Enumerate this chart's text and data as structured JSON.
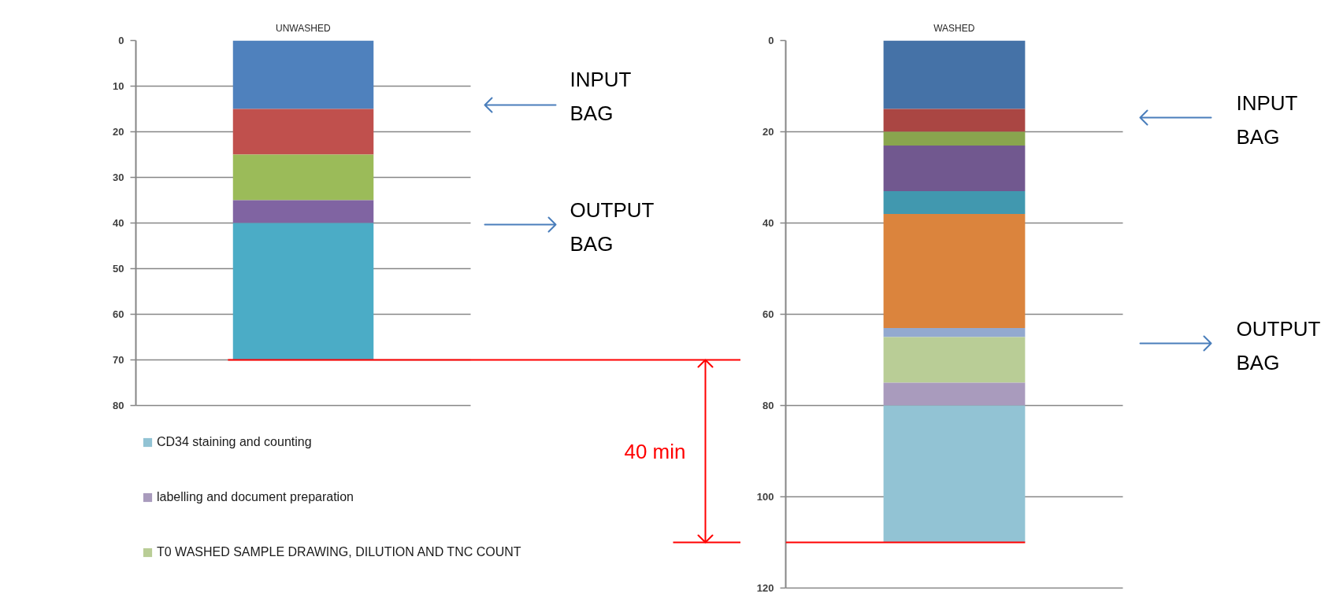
{
  "chart_data": [
    {
      "type": "bar",
      "title": "UNWASHED",
      "stacked": true,
      "categories": [
        null
      ],
      "series": [
        {
          "color": "#4f81bd",
          "values": [
            15
          ]
        },
        {
          "color": "#c0504d",
          "values": [
            10
          ]
        },
        {
          "color": "#9bbb59",
          "values": [
            10
          ]
        },
        {
          "color": "#8064a2",
          "values": [
            5
          ]
        },
        {
          "color": "#4bacc6",
          "values": [
            30
          ]
        }
      ],
      "ylim": [
        80,
        0
      ],
      "yticks": [
        0,
        10,
        20,
        30,
        40,
        50,
        60,
        70,
        80
      ],
      "grid": "y",
      "ref_lines": [
        {
          "axis": "y",
          "value": 70,
          "color": "#ff0000"
        }
      ],
      "annotations": [
        "INPUT BAG",
        "OUTPUT BAG",
        "40 min"
      ]
    },
    {
      "type": "bar",
      "title": "WASHED",
      "stacked": true,
      "categories": [
        null
      ],
      "series": [
        {
          "color": "#4572a7",
          "values": [
            15
          ]
        },
        {
          "color": "#aa4643",
          "values": [
            5
          ]
        },
        {
          "color": "#89a54e",
          "values": [
            3
          ]
        },
        {
          "color": "#71588f",
          "values": [
            10
          ]
        },
        {
          "color": "#4198af",
          "values": [
            5
          ]
        },
        {
          "color": "#db843d",
          "values": [
            25
          ]
        },
        {
          "color": "#93a9cf",
          "values": [
            2
          ]
        },
        {
          "name": "T0 WASHED SAMPLE DRAWING, DILUTION AND TNC COUNT",
          "color": "#b9cd96",
          "values": [
            10
          ]
        },
        {
          "name": "labelling and document preparation",
          "color": "#a99bbd",
          "values": [
            5
          ]
        },
        {
          "name": "CD34 staining and counting",
          "color": "#92c3d4",
          "values": [
            30
          ]
        }
      ],
      "ylim": [
        120,
        0
      ],
      "yticks": [
        0,
        20,
        40,
        60,
        80,
        100,
        120
      ],
      "grid": "y",
      "legend": "bottom left",
      "ref_lines": [
        {
          "axis": "y",
          "value": 110,
          "color": "#ff0000"
        }
      ],
      "annotations": [
        "INPUT BAG",
        "OUTPUT BAG"
      ]
    }
  ]
}
